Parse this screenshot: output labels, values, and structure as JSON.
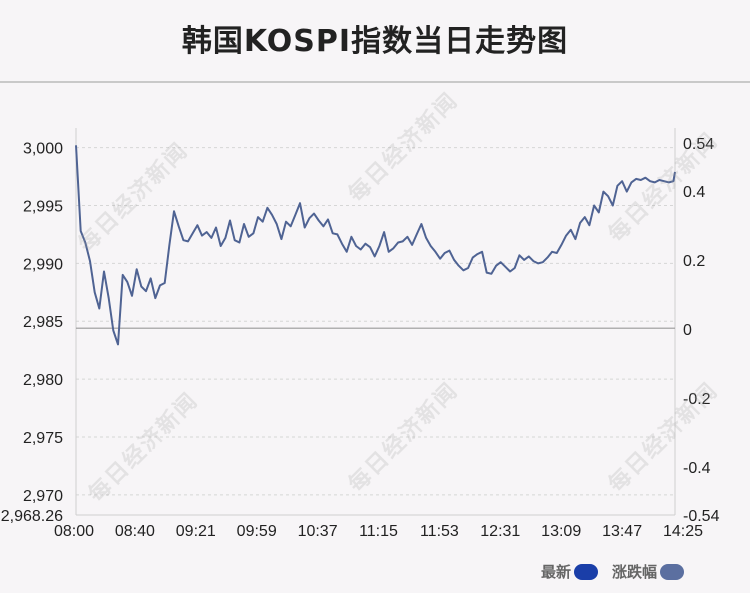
{
  "title": "韩国KOSPI指数当日走势图",
  "watermark_text": "每日经济新闻",
  "legend": [
    {
      "label": "最新",
      "color": "#1a3ea8"
    },
    {
      "label": "涨跌幅",
      "color": "#5b6fa0"
    }
  ],
  "colors": {
    "line": "#4f6393",
    "baseline": "#999999",
    "grid": "#d6d6d6"
  },
  "chart_data": {
    "type": "line",
    "title": "韩国KOSPI指数当日走势图",
    "xlabel": "",
    "ylabel": "",
    "x_tick_labels": [
      "08:00",
      "08:40",
      "09:21",
      "09:59",
      "10:37",
      "11:15",
      "11:53",
      "12:31",
      "13:09",
      "13:47",
      "14:25"
    ],
    "y_left_ticks": [
      "2,968.26",
      "2,970",
      "2,975",
      "2,980",
      "2,985",
      "2,990",
      "2,995",
      "3,000"
    ],
    "y_left_values": [
      2968.26,
      2970,
      2975,
      2980,
      2985,
      2990,
      2995,
      3000
    ],
    "y_right_ticks": [
      "-0.54",
      "-0.4",
      "-0.2",
      "0",
      "0.2",
      "0.4",
      "0.54"
    ],
    "y_right_values": [
      -0.54,
      -0.4,
      -0.2,
      0,
      0.2,
      0.4,
      0.54
    ],
    "ylim_left": [
      2968.26,
      3000.4
    ],
    "ylim_right": [
      -0.54,
      0.54
    ],
    "reference_value": 2984.4,
    "grid": true,
    "legend_position": "bottom-right",
    "series": [
      {
        "name": "最新",
        "x": [
          "08:00",
          "08:03",
          "08:06",
          "08:09",
          "08:12",
          "08:15",
          "08:18",
          "08:21",
          "08:24",
          "08:27",
          "08:30",
          "08:33",
          "08:36",
          "08:39",
          "08:42",
          "08:45",
          "08:48",
          "08:51",
          "08:54",
          "08:57",
          "09:00",
          "09:03",
          "09:06",
          "09:09",
          "09:12",
          "09:15",
          "09:18",
          "09:21",
          "09:24",
          "09:27",
          "09:30",
          "09:33",
          "09:36",
          "09:39",
          "09:42",
          "09:45",
          "09:48",
          "09:51",
          "09:54",
          "09:57",
          "10:00",
          "10:03",
          "10:06",
          "10:09",
          "10:12",
          "10:15",
          "10:18",
          "10:21",
          "10:24",
          "10:27",
          "10:30",
          "10:33",
          "10:36",
          "10:39",
          "10:42",
          "10:45",
          "10:48",
          "10:51",
          "10:54",
          "10:57",
          "11:00",
          "11:03",
          "11:06",
          "11:09",
          "11:12",
          "11:15",
          "11:18",
          "11:21",
          "11:24",
          "11:27",
          "11:30",
          "11:33",
          "11:36",
          "11:39",
          "11:42",
          "11:45",
          "11:48",
          "11:51",
          "11:54",
          "11:57",
          "12:00",
          "12:03",
          "12:06",
          "12:09",
          "12:12",
          "12:15",
          "12:18",
          "12:21",
          "12:24",
          "12:27",
          "12:30",
          "12:33",
          "12:36",
          "12:39",
          "12:42",
          "12:45",
          "12:48",
          "12:51",
          "12:54",
          "12:57",
          "13:00",
          "13:03",
          "13:06",
          "13:09",
          "13:12",
          "13:15",
          "13:18",
          "13:21",
          "13:24",
          "13:27",
          "13:30",
          "13:33",
          "13:36",
          "13:39",
          "13:42",
          "13:45",
          "13:48",
          "13:51",
          "13:54",
          "13:57",
          "14:00",
          "14:03",
          "14:06",
          "14:09",
          "14:12",
          "14:15",
          "14:18",
          "14:21",
          "14:24",
          "14:25"
        ],
        "values": [
          3000.2,
          2992.8,
          2991.8,
          2990.2,
          2987.5,
          2986.1,
          2989.3,
          2987.0,
          2984.2,
          2983.0,
          2989.0,
          2988.4,
          2987.2,
          2989.5,
          2988.0,
          2987.6,
          2988.7,
          2987.0,
          2988.1,
          2988.3,
          2991.6,
          2994.5,
          2993.2,
          2992.0,
          2991.9,
          2992.6,
          2993.3,
          2992.4,
          2992.7,
          2992.2,
          2993.1,
          2991.5,
          2992.2,
          2993.7,
          2992.0,
          2991.8,
          2993.4,
          2992.3,
          2992.6,
          2994.0,
          2993.6,
          2994.8,
          2994.2,
          2993.4,
          2992.1,
          2993.6,
          2993.2,
          2994.2,
          2995.2,
          2993.1,
          2993.9,
          2994.3,
          2993.7,
          2993.2,
          2993.8,
          2992.6,
          2992.5,
          2991.7,
          2991.0,
          2992.3,
          2991.5,
          2991.2,
          2991.7,
          2991.4,
          2990.6,
          2991.5,
          2992.7,
          2991.0,
          2991.3,
          2991.8,
          2991.9,
          2992.3,
          2991.6,
          2992.5,
          2993.4,
          2992.2,
          2991.5,
          2991.0,
          2990.4,
          2990.9,
          2991.1,
          2990.3,
          2989.8,
          2989.4,
          2989.6,
          2990.5,
          2990.8,
          2991.0,
          2989.2,
          2989.1,
          2989.8,
          2990.1,
          2989.7,
          2989.3,
          2989.6,
          2990.7,
          2990.3,
          2990.6,
          2990.2,
          2990.0,
          2990.1,
          2990.5,
          2991.0,
          2990.9,
          2991.6,
          2992.4,
          2992.9,
          2992.1,
          2993.5,
          2994.0,
          2993.3,
          2995.0,
          2994.4,
          2996.2,
          2995.8,
          2995.0,
          2996.7,
          2997.1,
          2996.2,
          2997.0,
          2997.3,
          2997.2,
          2997.4,
          2997.1,
          2997.0,
          2997.2,
          2997.1,
          2997.0,
          2997.1,
          2997.9
        ]
      },
      {
        "name": "涨跌幅",
        "x": [
          "08:00",
          "08:03",
          "08:06",
          "08:09",
          "08:12",
          "08:15",
          "08:18",
          "08:21",
          "08:24",
          "08:27",
          "08:30",
          "08:33",
          "08:36",
          "08:39",
          "08:42",
          "08:45",
          "08:48",
          "08:51",
          "08:54",
          "08:57",
          "09:00",
          "09:03",
          "09:06",
          "09:09",
          "09:12",
          "09:15",
          "09:18",
          "09:21",
          "09:24",
          "09:27",
          "09:30",
          "09:33",
          "09:36",
          "09:39",
          "09:42",
          "09:45",
          "09:48",
          "09:51",
          "09:54",
          "09:57",
          "10:00",
          "10:03",
          "10:06",
          "10:09",
          "10:12",
          "10:15",
          "10:18",
          "10:21",
          "10:24",
          "10:27",
          "10:30",
          "10:33",
          "10:36",
          "10:39",
          "10:42",
          "10:45",
          "10:48",
          "10:51",
          "10:54",
          "10:57",
          "11:00",
          "11:03",
          "11:06",
          "11:09",
          "11:12",
          "11:15",
          "11:18",
          "11:21",
          "11:24",
          "11:27",
          "11:30",
          "11:33",
          "11:36",
          "11:39",
          "11:42",
          "11:45",
          "11:48",
          "11:51",
          "11:54",
          "11:57",
          "12:00",
          "12:03",
          "12:06",
          "12:09",
          "12:12",
          "12:15",
          "12:18",
          "12:21",
          "12:24",
          "12:27",
          "12:30",
          "12:33",
          "12:36",
          "12:39",
          "12:42",
          "12:45",
          "12:48",
          "12:51",
          "12:54",
          "12:57",
          "13:00",
          "13:03",
          "13:06",
          "13:09",
          "13:12",
          "13:15",
          "13:18",
          "13:21",
          "13:24",
          "13:27",
          "13:30",
          "13:33",
          "13:36",
          "13:39",
          "13:42",
          "13:45",
          "13:48",
          "13:51",
          "13:54",
          "13:57",
          "14:00",
          "14:03",
          "14:06",
          "14:09",
          "14:12",
          "14:15",
          "14:18",
          "14:21",
          "14:24",
          "14:25"
        ],
        "values": [
          0.53,
          0.28,
          0.25,
          0.19,
          0.1,
          0.06,
          0.17,
          0.09,
          -0.01,
          -0.05,
          0.15,
          0.13,
          0.09,
          0.17,
          0.12,
          0.11,
          0.14,
          0.09,
          0.12,
          0.13,
          0.24,
          0.34,
          0.3,
          0.25,
          0.25,
          0.28,
          0.3,
          0.27,
          0.28,
          0.26,
          0.29,
          0.24,
          0.26,
          0.31,
          0.26,
          0.25,
          0.3,
          0.27,
          0.28,
          0.32,
          0.31,
          0.35,
          0.33,
          0.3,
          0.26,
          0.31,
          0.3,
          0.33,
          0.36,
          0.29,
          0.32,
          0.33,
          0.31,
          0.3,
          0.32,
          0.28,
          0.27,
          0.25,
          0.22,
          0.27,
          0.24,
          0.23,
          0.25,
          0.24,
          0.21,
          0.24,
          0.28,
          0.22,
          0.23,
          0.25,
          0.25,
          0.27,
          0.24,
          0.27,
          0.3,
          0.26,
          0.24,
          0.22,
          0.2,
          0.22,
          0.23,
          0.2,
          0.18,
          0.17,
          0.17,
          0.2,
          0.21,
          0.22,
          0.16,
          0.16,
          0.18,
          0.19,
          0.18,
          0.16,
          0.17,
          0.21,
          0.2,
          0.21,
          0.19,
          0.19,
          0.19,
          0.2,
          0.22,
          0.22,
          0.24,
          0.27,
          0.29,
          0.26,
          0.31,
          0.32,
          0.3,
          0.36,
          0.33,
          0.39,
          0.38,
          0.36,
          0.41,
          0.43,
          0.4,
          0.42,
          0.43,
          0.43,
          0.44,
          0.43,
          0.42,
          0.43,
          0.43,
          0.42,
          0.43,
          0.45
        ]
      }
    ]
  }
}
